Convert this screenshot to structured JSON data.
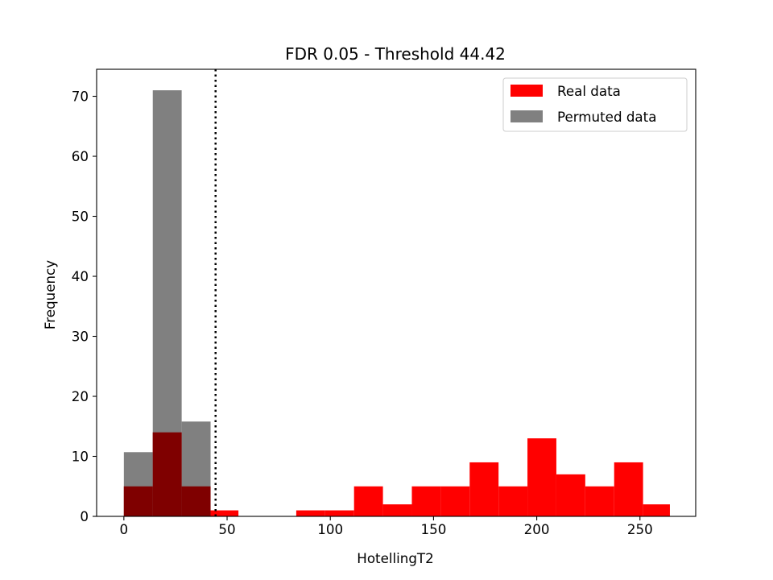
{
  "chart_data": {
    "type": "bar",
    "title": "FDR 0.05 - Threshold 44.42",
    "xlabel": "HotellingT2",
    "ylabel": "Frequency",
    "xlim": [
      -13.2,
      277
    ],
    "ylim": [
      0,
      74.5
    ],
    "xticks": [
      0,
      50,
      100,
      150,
      200,
      250
    ],
    "yticks": [
      0,
      10,
      20,
      30,
      40,
      50,
      60,
      70
    ],
    "threshold": 44.42,
    "legend": {
      "placement": "top-right"
    },
    "colors": {
      "real": "#ff0000",
      "permuted": "#808080",
      "overlap": "#7f0000",
      "threshold_line": "#000000"
    },
    "series": [
      {
        "name": "Real data",
        "bins": [
          {
            "x0": 0,
            "x1": 14,
            "value": 5
          },
          {
            "x0": 14,
            "x1": 28,
            "value": 14
          },
          {
            "x0": 28,
            "x1": 42,
            "value": 5
          },
          {
            "x0": 42,
            "x1": 55.5,
            "value": 1
          },
          {
            "x0": 83.5,
            "x1": 97.5,
            "value": 1
          },
          {
            "x0": 97.5,
            "x1": 111.5,
            "value": 1
          },
          {
            "x0": 111.5,
            "x1": 125.5,
            "value": 5
          },
          {
            "x0": 125.5,
            "x1": 139.5,
            "value": 2
          },
          {
            "x0": 139.5,
            "x1": 153.5,
            "value": 5
          },
          {
            "x0": 153.5,
            "x1": 167.5,
            "value": 5
          },
          {
            "x0": 167.5,
            "x1": 181.5,
            "value": 9
          },
          {
            "x0": 181.5,
            "x1": 195.5,
            "value": 5
          },
          {
            "x0": 195.5,
            "x1": 209.5,
            "value": 13
          },
          {
            "x0": 209.5,
            "x1": 223.5,
            "value": 7
          },
          {
            "x0": 223.5,
            "x1": 237.5,
            "value": 5
          },
          {
            "x0": 237.5,
            "x1": 251.5,
            "value": 9
          },
          {
            "x0": 251.5,
            "x1": 264.5,
            "value": 2
          }
        ]
      },
      {
        "name": "Permuted data",
        "bins": [
          {
            "x0": 0,
            "x1": 14,
            "value": 10.7
          },
          {
            "x0": 14,
            "x1": 28,
            "value": 71
          },
          {
            "x0": 28,
            "x1": 42,
            "value": 15.8
          }
        ]
      }
    ]
  }
}
